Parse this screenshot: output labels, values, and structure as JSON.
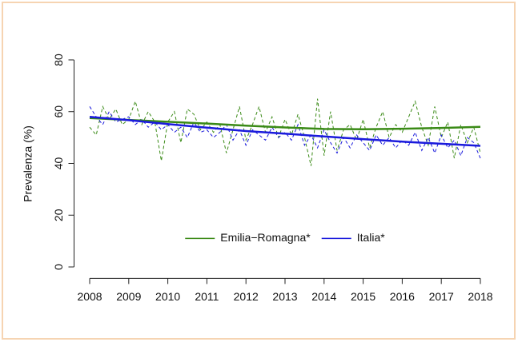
{
  "chart_data": {
    "type": "line",
    "ylabel": "Prevalenza (%)",
    "x": [
      2008,
      2008.167,
      2008.333,
      2008.5,
      2008.667,
      2008.833,
      2009,
      2009.167,
      2009.333,
      2009.5,
      2009.667,
      2009.833,
      2010,
      2010.167,
      2010.333,
      2010.5,
      2010.667,
      2010.833,
      2011,
      2011.167,
      2011.333,
      2011.5,
      2011.667,
      2011.833,
      2012,
      2012.167,
      2012.333,
      2012.5,
      2012.667,
      2012.833,
      2013,
      2013.167,
      2013.333,
      2013.5,
      2013.667,
      2013.833,
      2014,
      2014.167,
      2014.333,
      2014.5,
      2014.667,
      2014.833,
      2015,
      2015.167,
      2015.333,
      2015.5,
      2015.667,
      2015.833,
      2016,
      2016.167,
      2016.333,
      2016.5,
      2016.667,
      2016.833,
      2017,
      2017.167,
      2017.333,
      2017.5,
      2017.667,
      2017.833,
      2018
    ],
    "trend_x": [
      2008,
      2009,
      2010,
      2011,
      2012,
      2013,
      2014,
      2015,
      2016,
      2017,
      2018
    ],
    "series": [
      {
        "name": "Emilia−Romagna*",
        "color": "#3a8a16",
        "values": [
          54,
          51,
          62,
          57,
          61,
          55,
          57,
          64,
          55,
          60,
          56,
          41,
          56,
          60,
          48,
          61,
          59,
          53,
          56,
          52,
          55,
          44,
          53,
          62,
          49,
          55,
          62,
          52,
          58,
          50,
          57,
          51,
          59,
          50,
          39,
          65,
          43,
          60,
          45,
          53,
          55,
          49,
          57,
          46,
          54,
          60,
          50,
          55,
          52,
          58,
          64,
          54,
          47,
          62,
          50,
          56,
          42,
          55,
          48,
          54,
          44
        ],
        "trend": [
          57.5,
          56.8,
          56.1,
          55.4,
          54.6,
          53.9,
          53.3,
          53.2,
          53.4,
          53.7,
          54.1
        ]
      },
      {
        "name": "Italia*",
        "color": "#1a1adc",
        "values": [
          62,
          58,
          55,
          60,
          56,
          57,
          58,
          55,
          57,
          54,
          56,
          53,
          55,
          52,
          54,
          50,
          56,
          52,
          53,
          50,
          52,
          55,
          49,
          53,
          47,
          53,
          51,
          49,
          54,
          50,
          52,
          49,
          55,
          47,
          51,
          46,
          53,
          48,
          44,
          50,
          46,
          51,
          48,
          45,
          51,
          47,
          50,
          46,
          49,
          47,
          52,
          45,
          50,
          44,
          51,
          46,
          49,
          43,
          50,
          48,
          42
        ],
        "trend": [
          58,
          56.7,
          55.2,
          53.8,
          52.5,
          51.5,
          50.4,
          49.4,
          48.4,
          47.6,
          46.8
        ]
      }
    ],
    "xlim": [
      2007.6,
      2018.4
    ],
    "xticks": [
      2008,
      2009,
      2010,
      2011,
      2012,
      2013,
      2014,
      2015,
      2016,
      2017,
      2018
    ],
    "ylim": [
      -3.2,
      83.2
    ],
    "yticks": [
      0,
      20,
      40,
      60,
      80
    ],
    "legend": "bottom"
  }
}
